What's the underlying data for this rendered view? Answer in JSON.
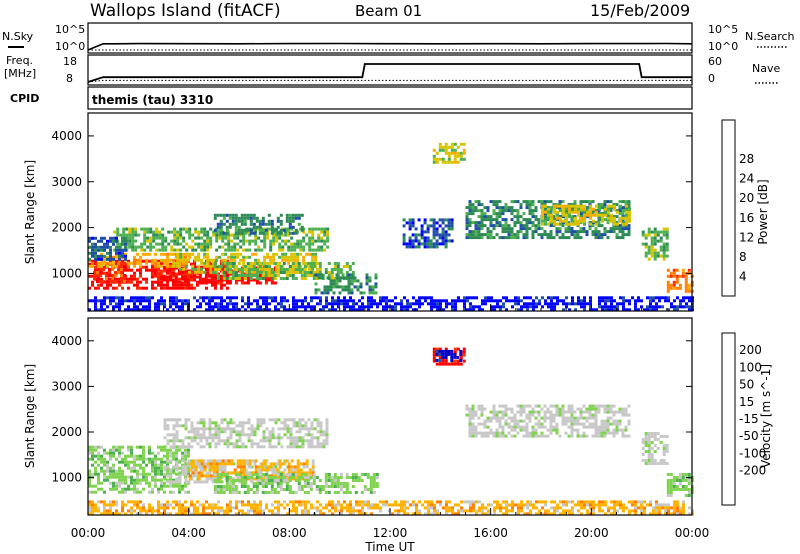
{
  "header": {
    "station": "Wallops Island (fitACF)",
    "beam": "Beam 01",
    "date": "15/Feb/2009"
  },
  "nsky_panel": {
    "left_label": "N.Sky",
    "left_ticks": [
      "10^5",
      "10^0"
    ],
    "right_label": "N.Search",
    "right_ticks": [
      "10^5",
      "10^0"
    ]
  },
  "freq_panel": {
    "left_label_1": "Freq.",
    "left_label_2": "[MHz]",
    "left_ticks": [
      "18",
      "8"
    ],
    "right_label": "Nave",
    "right_ticks": [
      "60",
      "0"
    ]
  },
  "cpid": {
    "label": "CPID",
    "text": "themis (tau) 3310"
  },
  "colors": {
    "power_scale": [
      "#0000ff",
      "#1f4fa8",
      "#2e8a55",
      "#4caf50",
      "#d7c400",
      "#ffaa00",
      "#ff7f00",
      "#ff2a00",
      "#ff0000"
    ],
    "velocity_scale": [
      "#0000cd",
      "#1f4fa8",
      "#4caf50",
      "#7fd34e",
      "#c8c8c8",
      "#c8c8c8",
      "#ffb300",
      "#ff7f00",
      "#ff3300",
      "#ff0000"
    ]
  },
  "chart_data": [
    {
      "type": "line",
      "title": "N.Sky / N.Search",
      "xlabel": "",
      "ylim": [
        0,
        100000
      ],
      "x": [
        0,
        0.6,
        1,
        2,
        4,
        6,
        8,
        10,
        12,
        14,
        16,
        18,
        20,
        22,
        23,
        24
      ],
      "series": [
        {
          "name": "N.Sky",
          "values": [
            1,
            20,
            20,
            22,
            21,
            20,
            22,
            23,
            21,
            20,
            21,
            20,
            22,
            22,
            23,
            20
          ]
        },
        {
          "name": "N.Search",
          "values": [
            1,
            1,
            1,
            1,
            1,
            1,
            1,
            1,
            1,
            1,
            1,
            1,
            1,
            1,
            1,
            1
          ]
        }
      ]
    },
    {
      "type": "line",
      "title": "Freq. / Nave",
      "x": [
        0,
        0.6,
        10.9,
        11.0,
        21.9,
        22.0,
        24
      ],
      "series": [
        {
          "name": "Freq.",
          "values": [
            8,
            10,
            10,
            15.5,
            15.5,
            10,
            10
          ]
        },
        {
          "name": "Nave",
          "values": [
            0,
            4,
            4,
            4,
            4,
            4,
            4
          ]
        }
      ],
      "ylim_left": [
        8,
        18
      ],
      "ylim_right": [
        0,
        60
      ]
    },
    {
      "type": "heatmap",
      "title": "Power",
      "ylabel": "Slant Range [km]",
      "colorbar_label": "Power [dB]",
      "colorbar_ticks": [
        "4",
        "8",
        "12",
        "16",
        "20",
        "24",
        "28"
      ],
      "xlim": [
        0,
        24
      ],
      "ylim": [
        180,
        4500
      ],
      "y_ticks": [
        "1000",
        "2000",
        "3000",
        "4000"
      ],
      "regions": [
        {
          "x0": 0.0,
          "x1": 5.5,
          "y0": 700,
          "y1": 1300,
          "level": 8
        },
        {
          "x0": 2.5,
          "x1": 7.5,
          "y0": 800,
          "y1": 1150,
          "level": 8
        },
        {
          "x0": 0.2,
          "x1": 1.5,
          "y0": 800,
          "y1": 1250,
          "level": 7
        },
        {
          "x0": 0.0,
          "x1": 4.0,
          "y0": 1150,
          "y1": 1450,
          "level": 5
        },
        {
          "x0": 3.5,
          "x1": 9.0,
          "y0": 1050,
          "y1": 1450,
          "level": 4
        },
        {
          "x0": 5.0,
          "x1": 10.5,
          "y0": 900,
          "y1": 1250,
          "level": 3
        },
        {
          "x0": 9.0,
          "x1": 11.5,
          "y0": 600,
          "y1": 1000,
          "level": 2
        },
        {
          "x0": 1.0,
          "x1": 9.5,
          "y0": 1500,
          "y1": 2000,
          "level": 3
        },
        {
          "x0": 5.0,
          "x1": 8.5,
          "y0": 1900,
          "y1": 2300,
          "level": 2
        },
        {
          "x0": 0.0,
          "x1": 1.5,
          "y0": 1300,
          "y1": 1800,
          "level": 1
        },
        {
          "x0": 13.7,
          "x1": 15.0,
          "y0": 3450,
          "y1": 3850,
          "level": 4
        },
        {
          "x0": 15.0,
          "x1": 21.5,
          "y0": 1800,
          "y1": 2600,
          "level": 2
        },
        {
          "x0": 18.0,
          "x1": 21.5,
          "y0": 2100,
          "y1": 2500,
          "level": 4
        },
        {
          "x0": 12.5,
          "x1": 14.5,
          "y0": 1600,
          "y1": 2200,
          "level": 1
        },
        {
          "x0": 22.0,
          "x1": 23.0,
          "y0": 1300,
          "y1": 2000,
          "level": 3
        },
        {
          "x0": 23.0,
          "x1": 24.0,
          "y0": 600,
          "y1": 1100,
          "level": 6
        },
        {
          "x0": 0.0,
          "x1": 24.0,
          "y0": 200,
          "y1": 500,
          "level": 0
        }
      ]
    },
    {
      "type": "heatmap",
      "title": "Velocity",
      "ylabel": "Slant Range [km]",
      "xlabel": "Time UT",
      "colorbar_label": "Velocity [m s^-1]",
      "colorbar_ticks": [
        "200",
        "100",
        "50",
        "15",
        "-15",
        "-50",
        "-100",
        "-200"
      ],
      "x_ticks": [
        "00:00",
        "04:00",
        "08:00",
        "12:00",
        "16:00",
        "20:00",
        "00:00"
      ],
      "xlim": [
        0,
        24
      ],
      "ylim": [
        180,
        4500
      ],
      "y_ticks": [
        "1000",
        "2000",
        "3000",
        "4000"
      ],
      "regions": [
        {
          "x0": 0.0,
          "x1": 4.0,
          "y0": 700,
          "y1": 1700,
          "level": 3
        },
        {
          "x0": 3.0,
          "x1": 8.0,
          "y0": 900,
          "y1": 1400,
          "level": 4
        },
        {
          "x0": 4.0,
          "x1": 9.0,
          "y0": 1000,
          "y1": 1400,
          "level": 6
        },
        {
          "x0": 5.0,
          "x1": 11.5,
          "y0": 700,
          "y1": 1100,
          "level": 3
        },
        {
          "x0": 0.0,
          "x1": 24.0,
          "y0": 200,
          "y1": 500,
          "level": 6
        },
        {
          "x0": 13.7,
          "x1": 15.0,
          "y0": 3500,
          "y1": 3850,
          "level": 9
        },
        {
          "x0": 13.8,
          "x1": 14.8,
          "y0": 3550,
          "y1": 3800,
          "level": 0
        },
        {
          "x0": 15.0,
          "x1": 21.5,
          "y0": 1900,
          "y1": 2600,
          "level": 4
        },
        {
          "x0": 3.0,
          "x1": 9.5,
          "y0": 1700,
          "y1": 2300,
          "level": 4
        },
        {
          "x0": 22.0,
          "x1": 23.0,
          "y0": 1300,
          "y1": 2000,
          "level": 4
        },
        {
          "x0": 23.0,
          "x1": 24.0,
          "y0": 600,
          "y1": 1100,
          "level": 3
        }
      ]
    }
  ],
  "xlabel": "Time UT"
}
